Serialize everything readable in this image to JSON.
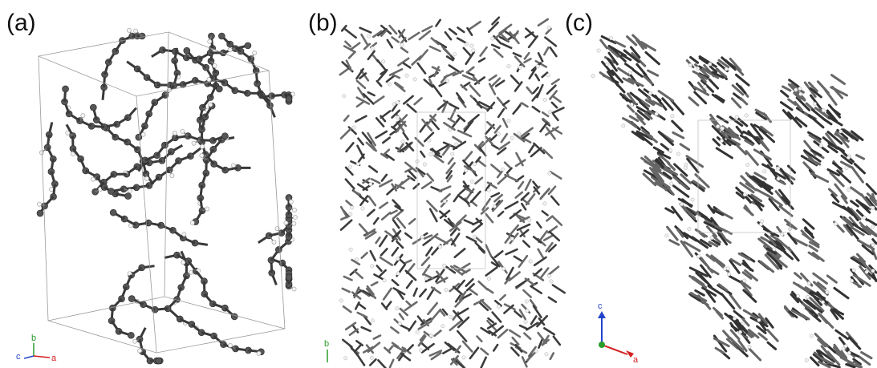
{
  "panels": [
    {
      "label": "(a)",
      "axes": [
        "c",
        "b",
        "a"
      ]
    },
    {
      "label": "(b)",
      "axes": [
        "b"
      ]
    },
    {
      "label": "(c)",
      "axes": [
        "c",
        "a"
      ]
    }
  ]
}
